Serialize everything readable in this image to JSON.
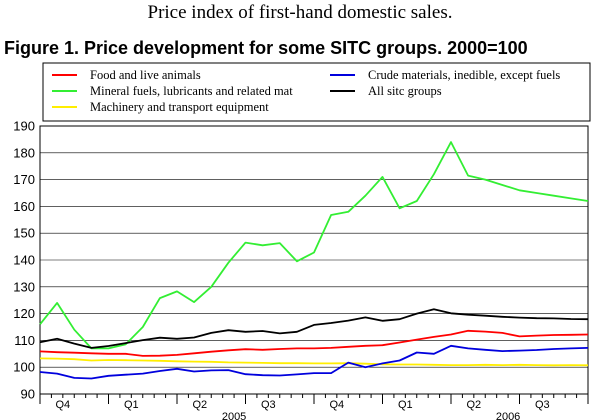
{
  "header": {
    "subtitle": "Price index of first-hand domestic sales.",
    "figure_title": "Figure 1. Price development for some SITC groups. 2000=100"
  },
  "chart_data": {
    "type": "line",
    "ylim": [
      90,
      190
    ],
    "yticks": [
      90,
      100,
      110,
      120,
      130,
      140,
      150,
      160,
      170,
      180,
      190
    ],
    "n_points": 33,
    "quarter_ticks": [
      {
        "label": "Q4",
        "pos": 2
      },
      {
        "label": "Q1",
        "pos": 8
      },
      {
        "label": "Q2",
        "pos": 14
      },
      {
        "label": "Q3",
        "pos": 20
      },
      {
        "label": "Q4",
        "pos": 26
      },
      {
        "label": "Q1",
        "pos": 32
      },
      {
        "label": "Q2",
        "pos": 38
      },
      {
        "label": "Q3",
        "pos": 44
      }
    ],
    "year_labels": [
      {
        "label": "2005",
        "pos": 17
      },
      {
        "label": "2006",
        "pos": 41
      }
    ],
    "series": [
      {
        "name": "Food and live animals",
        "color": "#ff0000",
        "values": [
          105.9,
          105.6,
          105.4,
          105.2,
          105.0,
          105.0,
          104.2,
          104.3,
          104.6,
          105.2,
          105.8,
          106.3,
          106.7,
          106.5,
          106.8,
          107.0,
          107.0,
          107.2,
          107.6,
          108.0,
          108.2,
          109.2,
          110.3,
          111.3,
          112.2,
          113.6,
          113.3,
          112.8,
          111.5,
          111.8,
          112.0,
          112.1,
          112.2
        ]
      },
      {
        "name": "Mineral fuels, lubricants and related mat",
        "color": "#33ee33",
        "values": [
          116.0,
          124.0,
          114.0,
          107.0,
          107.0,
          108.5,
          115.0,
          125.8,
          128.3,
          124.3,
          130.0,
          139.0,
          146.5,
          145.5,
          146.3,
          139.5,
          142.8,
          156.8,
          158.0,
          164.0,
          171.0,
          159.3,
          162.0,
          172.0,
          184.0,
          171.5,
          170.0,
          168.0,
          166.0,
          165.0,
          164.0,
          163.0,
          162.0
        ]
      },
      {
        "name": "Machinery and transport equipment",
        "color": "#ffee00",
        "values": [
          103.3,
          103.2,
          103.0,
          102.5,
          102.7,
          102.6,
          102.5,
          102.4,
          102.2,
          102.1,
          102.0,
          101.8,
          101.7,
          101.6,
          101.5,
          101.5,
          101.4,
          101.4,
          101.5,
          101.3,
          101.1,
          101.0,
          101.0,
          100.9,
          100.8,
          100.8,
          100.9,
          100.8,
          100.9,
          100.8,
          100.7,
          100.8,
          100.7
        ]
      },
      {
        "name": "Crude materials, inedible, except fuels",
        "color": "#0000dd",
        "values": [
          98.2,
          97.6,
          96.0,
          95.8,
          96.8,
          97.2,
          97.6,
          98.6,
          99.4,
          98.4,
          98.8,
          98.9,
          97.4,
          97.0,
          96.9,
          97.3,
          97.8,
          97.8,
          101.7,
          100.0,
          101.4,
          102.5,
          105.5,
          105.0,
          108.0,
          107.0,
          106.5,
          106.0,
          106.2,
          106.4,
          106.8,
          107.0,
          107.2
        ]
      },
      {
        "name": "All sitc groups",
        "color": "#000000",
        "values": [
          109.3,
          110.6,
          108.8,
          107.2,
          107.9,
          109.0,
          110.1,
          111.0,
          110.6,
          111.1,
          112.8,
          113.8,
          113.2,
          113.5,
          112.6,
          113.2,
          115.8,
          116.5,
          117.4,
          118.6,
          117.3,
          117.9,
          120.0,
          121.6,
          120.1,
          119.6,
          119.2,
          118.8,
          118.5,
          118.3,
          118.2,
          118.0,
          117.9
        ]
      }
    ],
    "legend_order": [
      0,
      3,
      1,
      4,
      2
    ],
    "legend_placement": "top, two columns"
  }
}
